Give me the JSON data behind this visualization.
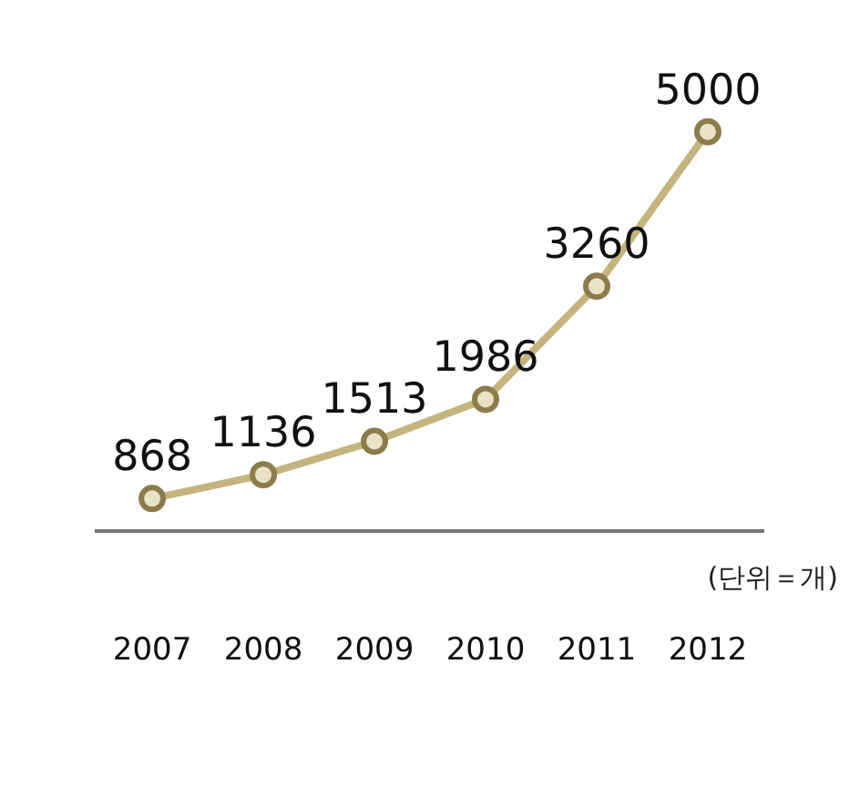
{
  "chart_data": {
    "type": "line",
    "categories": [
      "2007",
      "2008",
      "2009",
      "2010",
      "2011",
      "2012"
    ],
    "series": [
      {
        "color": "#c4b47e",
        "values": [
          868,
          1136,
          1513,
          1986,
          3260,
          5000
        ]
      }
    ],
    "data_labels": true,
    "marker": "circle",
    "line_style": "solid",
    "grid": false,
    "legend": false,
    "annotations": [
      "(단위＝개)"
    ]
  }
}
